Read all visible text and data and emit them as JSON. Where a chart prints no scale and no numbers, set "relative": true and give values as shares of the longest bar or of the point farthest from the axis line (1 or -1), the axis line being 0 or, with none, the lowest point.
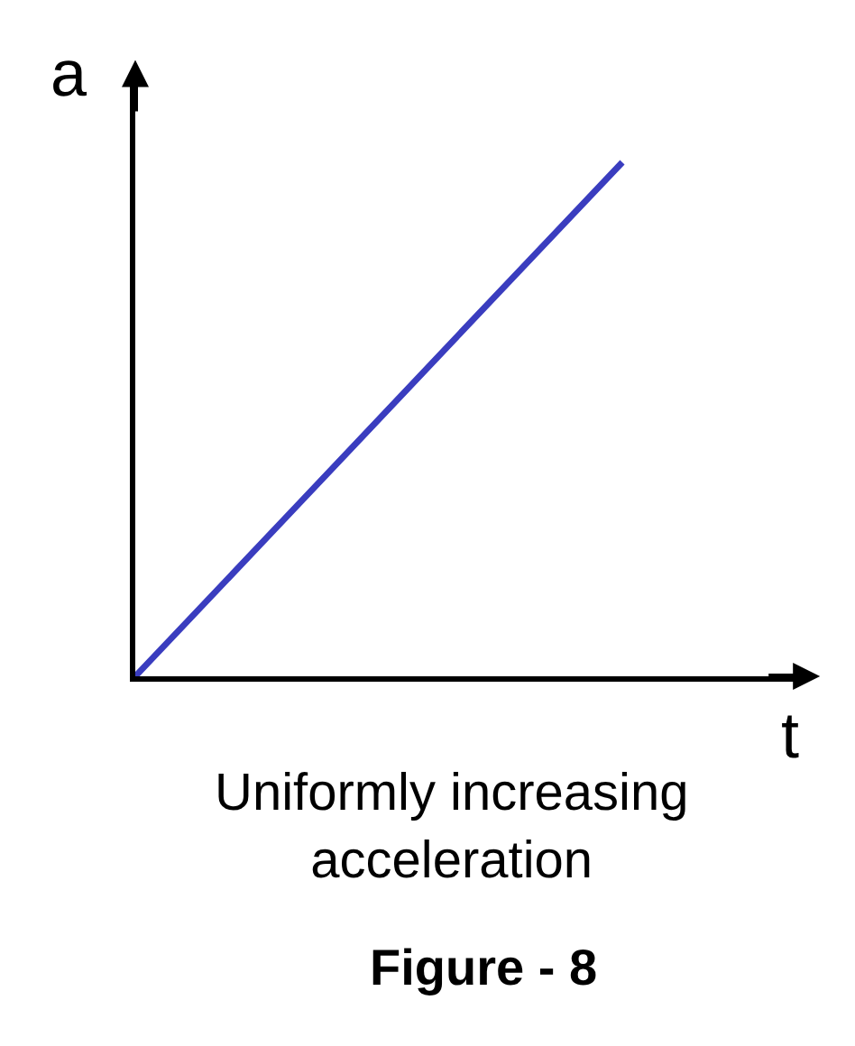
{
  "chart_data": {
    "type": "line",
    "relative": true,
    "xlabel": "t",
    "ylabel": "a",
    "categories": [
      null,
      null,
      null,
      null
    ],
    "series": [
      {
        "color": "#3a3dbf",
        "values": [
          0,
          0.333,
          0.667,
          1
        ]
      }
    ],
    "annotations": [
      "Uniformly increasing\nacceleration",
      "Figure - 8"
    ],
    "line_style": "solid",
    "marker": "none"
  }
}
